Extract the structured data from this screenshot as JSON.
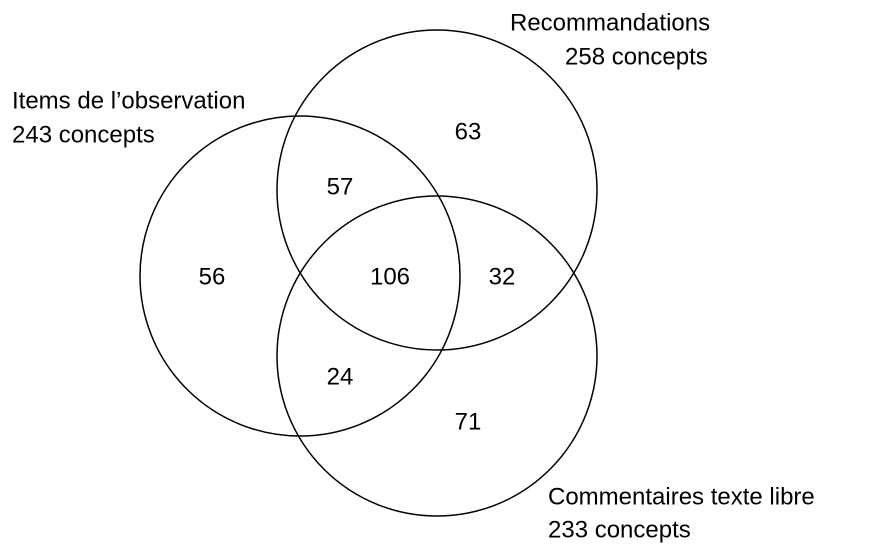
{
  "sets": [
    {
      "label": "Items de l’observation",
      "count": "243 concepts"
    },
    {
      "label": "Recommandations",
      "count": "258 concepts"
    },
    {
      "label": "Commentaires texte libre",
      "count": "233 concepts"
    }
  ],
  "regions": [
    63,
    57,
    56,
    106,
    32,
    24,
    71
  ]
}
